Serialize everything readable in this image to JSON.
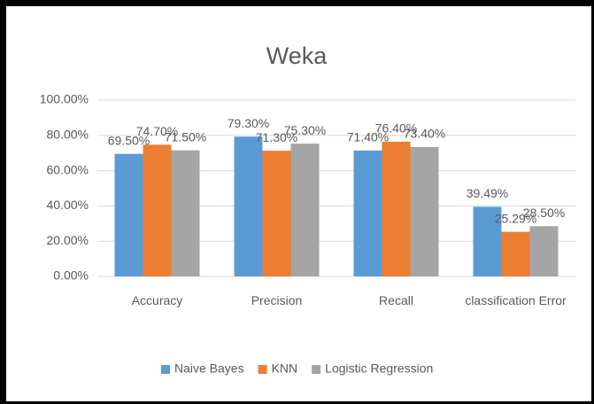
{
  "chart_data": {
    "type": "bar",
    "title": "Weka",
    "categories": [
      "Accuracy",
      "Precision",
      "Recall",
      "classification Error"
    ],
    "series": [
      {
        "name": "Naive Bayes",
        "color": "#5b9bd5",
        "values": [
          69.5,
          79.3,
          71.4,
          39.49
        ],
        "value_labels": [
          "69.50%",
          "79.30%",
          "71.40%",
          "39.49%"
        ]
      },
      {
        "name": "KNN",
        "color": "#ed7d31",
        "values": [
          74.7,
          71.3,
          76.4,
          25.29
        ],
        "value_labels": [
          "74.70%",
          "71.30%",
          "76.40%",
          "25.29%"
        ]
      },
      {
        "name": "Logistic Regression",
        "color": "#a5a5a5",
        "values": [
          71.5,
          75.3,
          73.4,
          28.5
        ],
        "value_labels": [
          "71.50%",
          "75.30%",
          "73.40%",
          "28.50%"
        ]
      }
    ],
    "ylim": [
      0,
      100
    ],
    "yticks": [
      {
        "value": 0,
        "label": "0.00%"
      },
      {
        "value": 20,
        "label": "20.00%"
      },
      {
        "value": 40,
        "label": "40.00%"
      },
      {
        "value": 60,
        "label": "60.00%"
      },
      {
        "value": 80,
        "label": "80.00%"
      },
      {
        "value": 100,
        "label": "100.00%"
      }
    ],
    "grid": true,
    "legend": "bottom"
  }
}
